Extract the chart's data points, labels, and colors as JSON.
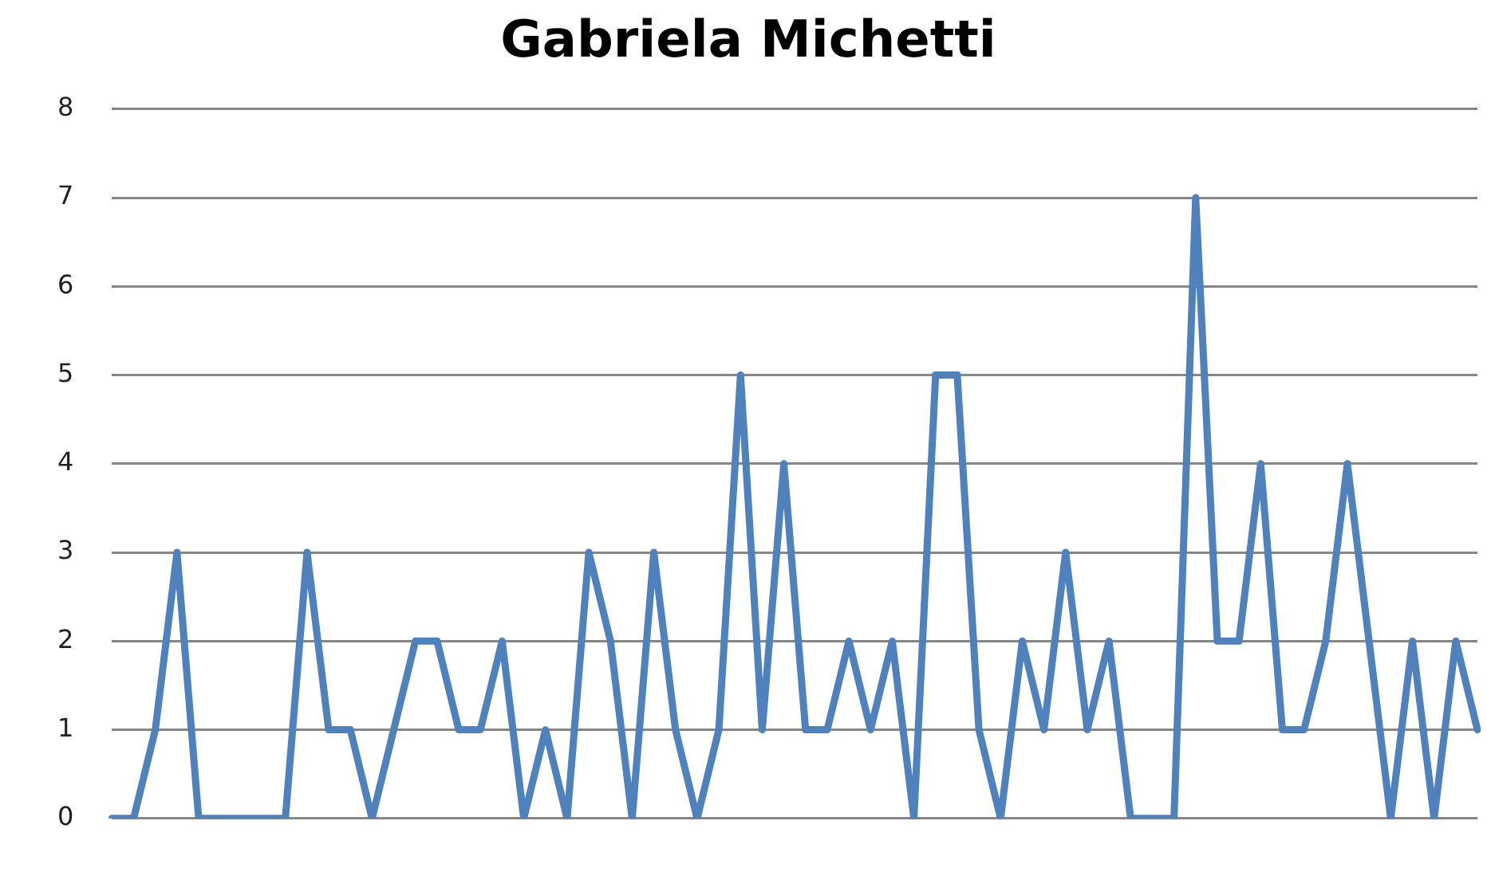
{
  "chart_data": {
    "type": "line",
    "title": "Gabriela Michetti",
    "categories": [
      null,
      null,
      null,
      null,
      null,
      null,
      null,
      null,
      null,
      null,
      null,
      null,
      null,
      null,
      null,
      null,
      null,
      null,
      null,
      null,
      null,
      null,
      null,
      null,
      null,
      null,
      null,
      null,
      null,
      null,
      null,
      null,
      null,
      null,
      null,
      null,
      null,
      null,
      null,
      null,
      null,
      null,
      null,
      null,
      null,
      null,
      null,
      null,
      null,
      null,
      null,
      null,
      null,
      null,
      null,
      null,
      null,
      null,
      null,
      null,
      null,
      null,
      null,
      null
    ],
    "series": [
      {
        "color": "#4f81bd",
        "values": [
          0,
          0,
          1,
          3,
          0,
          0,
          0,
          0,
          0,
          3,
          1,
          1,
          0,
          1,
          2,
          2,
          1,
          1,
          2,
          0,
          1,
          0,
          3,
          2,
          0,
          3,
          1,
          0,
          1,
          5,
          1,
          4,
          1,
          1,
          2,
          1,
          2,
          0,
          5,
          5,
          1,
          0,
          2,
          1,
          3,
          1,
          2,
          0,
          0,
          0,
          7,
          2,
          2,
          4,
          1,
          1,
          2,
          4,
          2,
          0,
          2,
          0,
          2,
          1
        ]
      }
    ],
    "ylim": [
      0,
      8
    ],
    "yticks": [
      0,
      1,
      2,
      3,
      4,
      5,
      6,
      7,
      8
    ],
    "grid": "y",
    "legend": false,
    "tick_labels": "y",
    "marker": "none",
    "line_style": "solid"
  }
}
